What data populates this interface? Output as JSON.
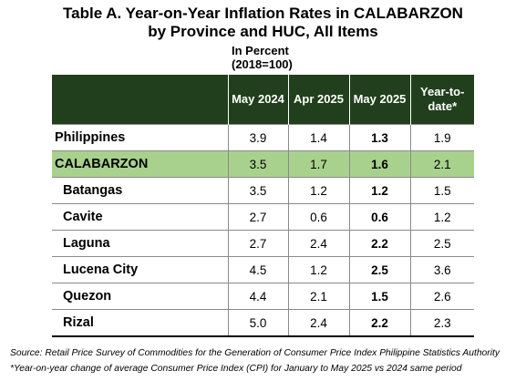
{
  "title_line1": "Table A. Year-on-Year Inflation Rates in CALABARZON",
  "title_line2": "by Province and HUC, All Items",
  "unit": "In Percent",
  "base_year": "(2018=100)",
  "headers": {
    "area": "",
    "col1": "May 2024",
    "col2": "Apr 2025",
    "col3": "May 2025",
    "col4_line1": "Year-to-",
    "col4_line2": "date*"
  },
  "rows": [
    {
      "area": "Philippines",
      "may2024": "3.9",
      "apr2025": "1.4",
      "may2025": "1.3",
      "ytd": "1.9"
    },
    {
      "area": "CALABARZON",
      "may2024": "3.5",
      "apr2025": "1.7",
      "may2025": "1.6",
      "ytd": "2.1"
    },
    {
      "area": "Batangas",
      "may2024": "3.5",
      "apr2025": "1.2",
      "may2025": "1.2",
      "ytd": "1.5"
    },
    {
      "area": "Cavite",
      "may2024": "2.7",
      "apr2025": "0.6",
      "may2025": "0.6",
      "ytd": "1.2"
    },
    {
      "area": "Laguna",
      "may2024": "2.7",
      "apr2025": "2.4",
      "may2025": "2.2",
      "ytd": "2.5"
    },
    {
      "area": "Lucena City",
      "may2024": "4.5",
      "apr2025": "1.2",
      "may2025": "2.5",
      "ytd": "3.6"
    },
    {
      "area": "Quezon",
      "may2024": "4.4",
      "apr2025": "2.1",
      "may2025": "1.5",
      "ytd": "2.6"
    },
    {
      "area": "Rizal",
      "may2024": "5.0",
      "apr2025": "2.4",
      "may2025": "2.2",
      "ytd": "2.3"
    }
  ],
  "highlight_color": "#a9d18e",
  "header_color": "#213f1c",
  "source_note": "Source: Retail Price Survey of Commodities for the Generation of Consumer Price Index Philippine Statistics Authority",
  "footnote": "*Year-on-year change of average Consumer Price Index (CPI) for January to May 2025 vs 2024 same period"
}
